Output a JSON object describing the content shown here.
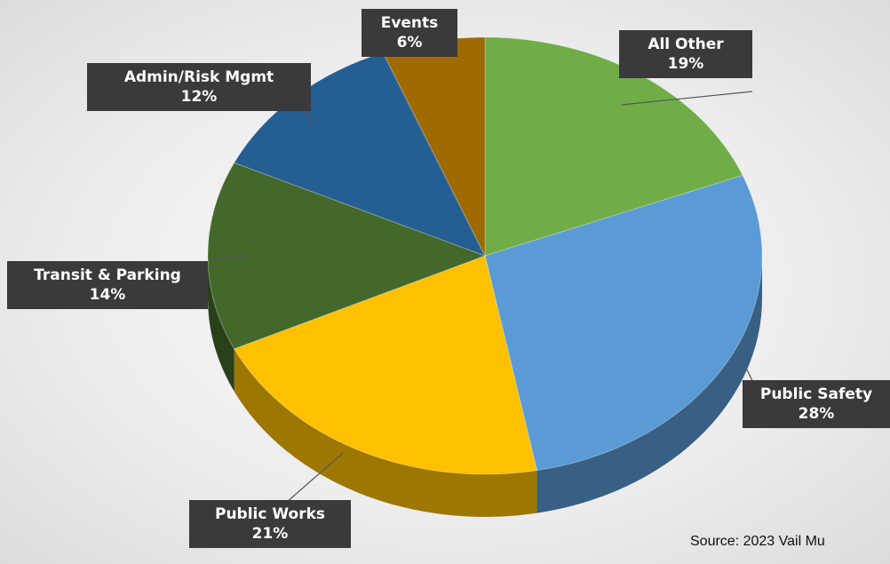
{
  "title": "",
  "source": "Source: 2023 Vail Mu",
  "chart_data": {
    "type": "pie",
    "style": "3d",
    "legend": "none",
    "slices": [
      {
        "label": "All Other",
        "value": 19,
        "value_label": "19%",
        "color": "#70ad47"
      },
      {
        "label": "Public Safety",
        "value": 28,
        "value_label": "28%",
        "color": "#5b9bd5"
      },
      {
        "label": "Public Works",
        "value": 21,
        "value_label": "21%",
        "color": "#ffc000"
      },
      {
        "label": "Transit & Parking",
        "value": 14,
        "value_label": "14%",
        "color": "#43682b"
      },
      {
        "label": "Admin/Risk Mgmt",
        "value": 12,
        "value_label": "12%",
        "color": "#255e91"
      },
      {
        "label": "Events",
        "value": 6,
        "value_label": "6%",
        "color": "#9e6a00"
      }
    ]
  }
}
